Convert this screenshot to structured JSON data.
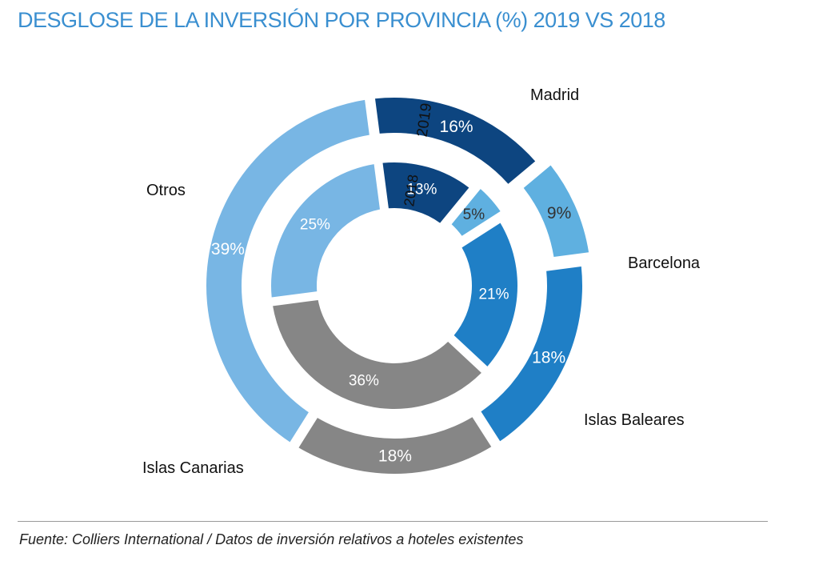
{
  "title": "DESGLOSE DE LA INVERSIÓN POR PROVINCIA (%) 2019 VS 2018",
  "source": "Fuente: Colliers International / Datos de inversión relativos a hoteles existentes",
  "chart_data": {
    "type": "pie",
    "subtype": "nested-donut",
    "categories": [
      "Madrid",
      "Barcelona",
      "Islas Baleares",
      "Islas Canarias",
      "Otros"
    ],
    "colors": {
      "Madrid": "#0d4580",
      "Barcelona": "#5fb0e0",
      "Islas Baleares": "#1f7fc6",
      "Islas Canarias": "#868686",
      "Otros": "#78b6e4"
    },
    "series": [
      {
        "name": "2019",
        "ring": "outer",
        "values": [
          16,
          9,
          18,
          18,
          39
        ],
        "labels": [
          "16%",
          "9%",
          "18%",
          "18%",
          "39%"
        ]
      },
      {
        "name": "2018",
        "ring": "inner",
        "values": [
          13,
          5,
          21,
          36,
          25
        ],
        "labels": [
          "13%",
          "5%",
          "21%",
          "36%",
          "25%"
        ]
      }
    ],
    "legend": "category labels around outer ring"
  }
}
